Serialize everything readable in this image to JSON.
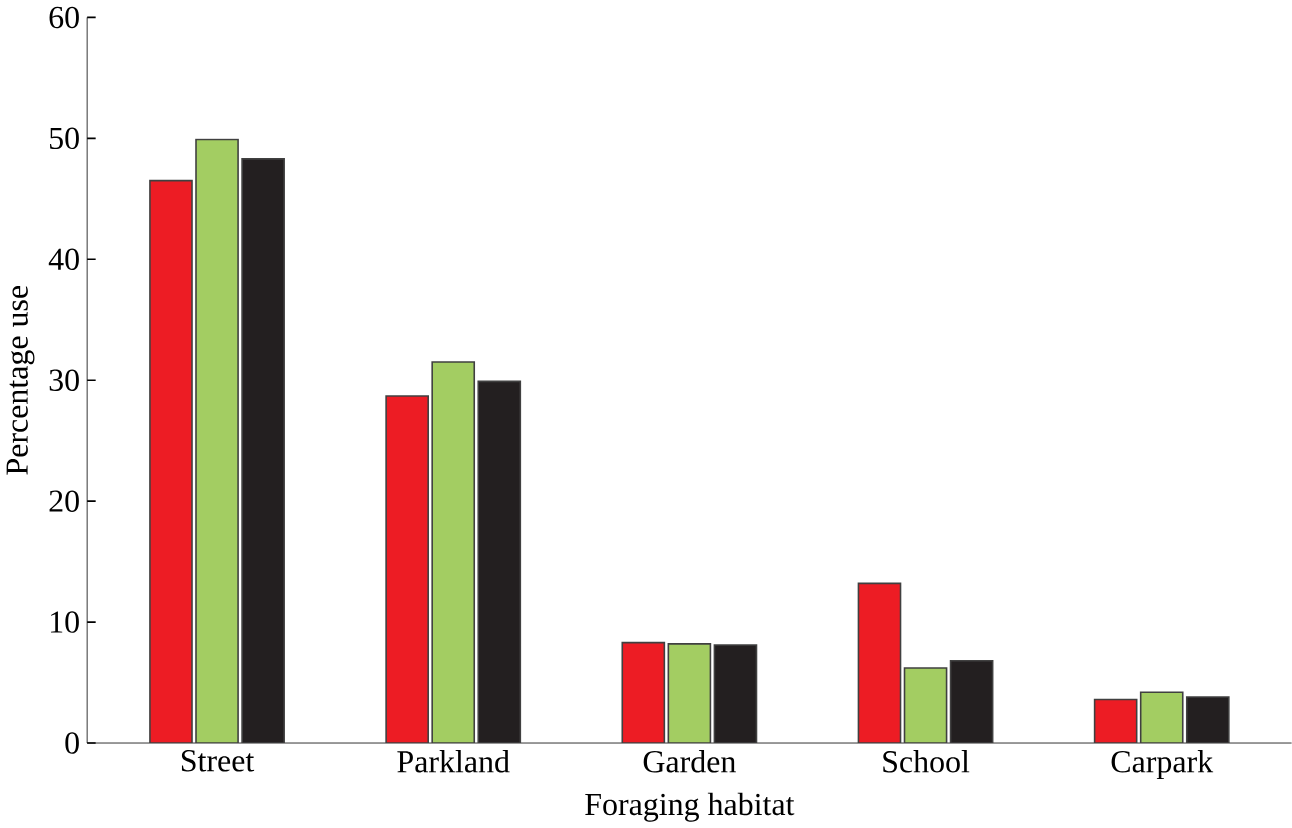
{
  "chart_data": {
    "type": "bar",
    "xlabel": "Foraging habitat",
    "ylabel": "Percentage use",
    "categories": [
      "Street",
      "Parkland",
      "Garden",
      "School",
      "Carpark"
    ],
    "series": [
      {
        "color": "#ed1c24",
        "values": [
          46.5,
          28.7,
          8.3,
          13.2,
          3.6
        ]
      },
      {
        "color": "#a3cd62",
        "values": [
          49.9,
          31.5,
          8.2,
          6.2,
          4.2
        ]
      },
      {
        "color": "#231f20",
        "values": [
          48.3,
          29.9,
          8.1,
          6.8,
          3.8
        ]
      }
    ],
    "ylim": [
      0,
      60
    ],
    "yticks": [
      0,
      10,
      20,
      30,
      40,
      50,
      60
    ]
  }
}
